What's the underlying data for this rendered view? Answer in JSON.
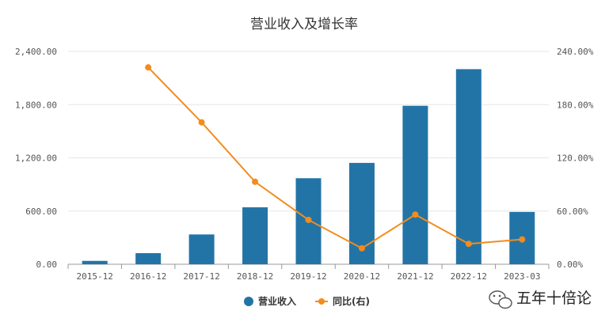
{
  "chart_data": {
    "type": "bar+line",
    "title": "营业收入及增长率",
    "categories": [
      "2015-12",
      "2016-12",
      "2017-12",
      "2018-12",
      "2019-12",
      "2020-12",
      "2021-12",
      "2022-12",
      "2023-03"
    ],
    "series": [
      {
        "name": "营业收入",
        "type": "bar",
        "axis": "left",
        "color": "#2374a6",
        "values": [
          38,
          125,
          336,
          642,
          970,
          1143,
          1787,
          2200,
          590
        ]
      },
      {
        "name": "同比(右)",
        "type": "line",
        "axis": "right",
        "color": "#f28c1e",
        "values": [
          null,
          222,
          160,
          93,
          50,
          18,
          56,
          23,
          28
        ]
      }
    ],
    "left_axis": {
      "min": 0,
      "max": 2400,
      "ticks": [
        "0.00",
        "600.00",
        "1,200.00",
        "1,800.00",
        "2,400.00"
      ]
    },
    "right_axis": {
      "min": 0,
      "max": 240,
      "ticks": [
        "0.00%",
        "60.00%",
        "120.00%",
        "180.00%",
        "240.00%"
      ]
    },
    "grid": true,
    "legend_position": "bottom-center"
  },
  "watermark": {
    "text": "五年十倍论",
    "icon": "wechat-icon"
  }
}
